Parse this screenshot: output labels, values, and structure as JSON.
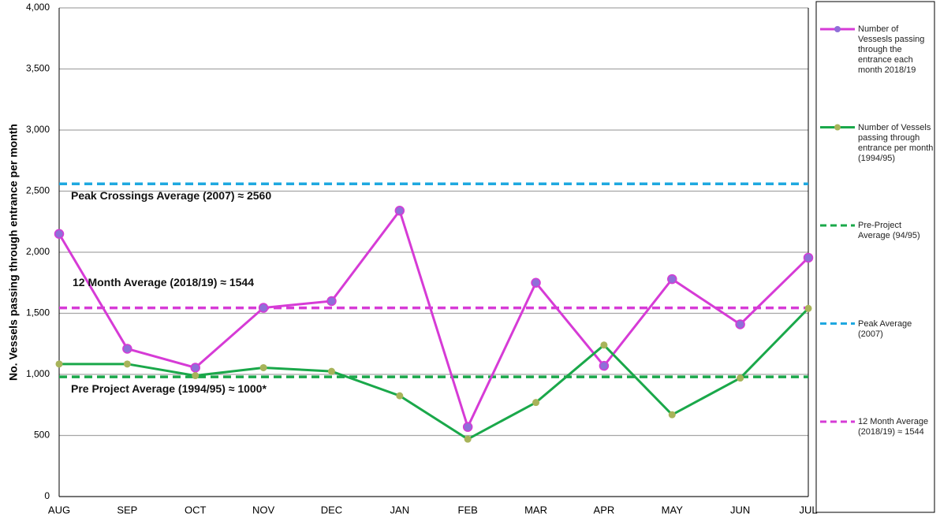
{
  "chart_data": {
    "type": "line",
    "y_label": "No. Vessels passing through entrance per month",
    "categories": [
      "AUG",
      "SEP",
      "OCT",
      "NOV",
      "DEC",
      "JAN",
      "FEB",
      "MAR",
      "APR",
      "MAY",
      "JUN",
      "JUL"
    ],
    "series": [
      {
        "name": "Number of Vessesls passing through the entrance each month 2018/19",
        "color": "#d63bd6",
        "marker_color": "#8f6fd8",
        "values": [
          2150,
          1210,
          1055,
          1545,
          1600,
          2340,
          570,
          1750,
          1070,
          1780,
          1410,
          1955
        ]
      },
      {
        "name": "Number of Vessels passing through entrance per month (1994/95)",
        "color": "#1aa84a",
        "marker_color": "#a8b45a",
        "values": [
          1085,
          1085,
          990,
          1055,
          1025,
          825,
          470,
          770,
          1240,
          670,
          970,
          1540
        ]
      }
    ],
    "reference_lines": [
      {
        "name": "Pre-Project Average (94/95)",
        "color": "#1aa84a",
        "value": 980
      },
      {
        "name": "Peak Average (2007)",
        "color": "#1fa8e0",
        "value": 2560
      },
      {
        "name": "12 Month Average (2018/19)  ≈ 1544",
        "color": "#d63bd6",
        "value": 1544
      }
    ],
    "annotations": [
      "Peak Crossings Average (2007) ≈ 2560",
      "12 Month Average (2018/19) ≈ 1544",
      "Pre Project Average (1994/95) ≈ 1000*"
    ],
    "ylim": [
      0,
      4000
    ],
    "yticks": [
      0,
      500,
      {
        "value": 1000,
        "label": "1,000"
      },
      {
        "value": 1500,
        "label": "1,500"
      },
      {
        "value": 2000,
        "label": "2,000"
      },
      {
        "value": 2500,
        "label": "2,500"
      },
      {
        "value": 3000,
        "label": "3,000"
      },
      {
        "value": 3500,
        "label": "3,500"
      },
      {
        "value": 4000,
        "label": "4,000"
      }
    ],
    "grid": true
  }
}
